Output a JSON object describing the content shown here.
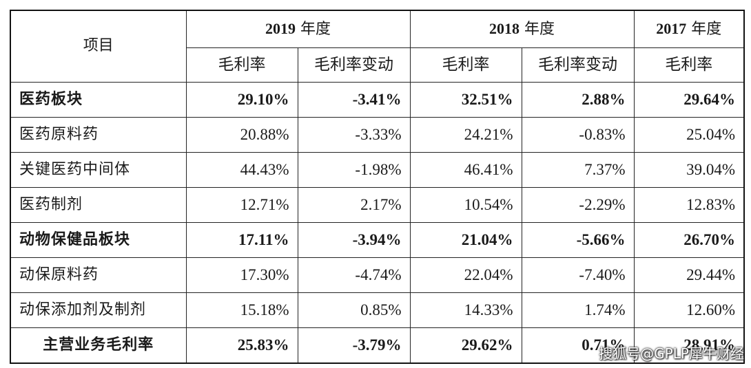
{
  "table": {
    "item_header": "项目",
    "years": [
      {
        "year": "2019",
        "suffix": " 年度"
      },
      {
        "year": "2018",
        "suffix": " 年度"
      },
      {
        "year": "2017",
        "suffix": " 年度"
      }
    ],
    "sub_headers": [
      "毛利率",
      "毛利率变动",
      "毛利率",
      "毛利率变动",
      "毛利率"
    ],
    "rows": [
      {
        "label": "医药板块",
        "bold": true,
        "values": [
          "29.10%",
          "-3.41%",
          "32.51%",
          "2.88%",
          "29.64%"
        ]
      },
      {
        "label": "医药原料药",
        "bold": false,
        "values": [
          "20.88%",
          "-3.33%",
          "24.21%",
          "-0.83%",
          "25.04%"
        ]
      },
      {
        "label": "关键医药中间体",
        "bold": false,
        "values": [
          "44.43%",
          "-1.98%",
          "46.41%",
          "7.37%",
          "39.04%"
        ]
      },
      {
        "label": "医药制剂",
        "bold": false,
        "values": [
          "12.71%",
          "2.17%",
          "10.54%",
          "-2.29%",
          "12.83%"
        ]
      },
      {
        "label": "动物保健品板块",
        "bold": true,
        "values": [
          "17.11%",
          "-3.94%",
          "21.04%",
          "-5.66%",
          "26.70%"
        ]
      },
      {
        "label": "动保原料药",
        "bold": false,
        "values": [
          "17.30%",
          "-4.74%",
          "22.04%",
          "-7.40%",
          "29.44%"
        ]
      },
      {
        "label": "动保添加剂及制剂",
        "bold": false,
        "values": [
          "15.18%",
          "0.85%",
          "14.33%",
          "1.74%",
          "12.60%"
        ]
      },
      {
        "label": "主营业务毛利率",
        "bold": true,
        "values": [
          "25.83%",
          "-3.79%",
          "29.62%",
          "0.71%",
          "28.91%"
        ]
      }
    ]
  },
  "watermark": "搜狐号@GPLP犀牛财经"
}
